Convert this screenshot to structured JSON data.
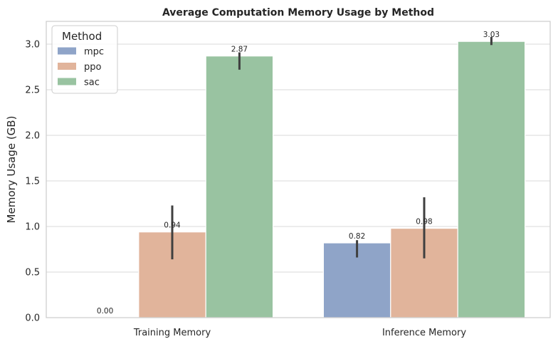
{
  "chart_data": {
    "type": "bar",
    "title": "Average Computation Memory Usage by Method",
    "xlabel": "",
    "ylabel": "Memory Usage (GB)",
    "categories": [
      "Training Memory",
      "Inference Memory"
    ],
    "ylim": [
      0,
      3.25
    ],
    "yticks": [
      0.0,
      0.5,
      1.0,
      1.5,
      2.0,
      2.5,
      3.0
    ],
    "ytick_labels": [
      "0.0",
      "0.5",
      "1.0",
      "1.5",
      "2.0",
      "2.5",
      "3.0"
    ],
    "grid": true,
    "legend": {
      "title": "Method",
      "placement": "top-left"
    },
    "series": [
      {
        "name": "mpc",
        "color": "#8fa4c8",
        "values": [
          0.0,
          0.82
        ],
        "value_labels": [
          "0.00",
          "0.82"
        ],
        "error_low": [
          null,
          0.66
        ],
        "error_high": [
          null,
          0.85
        ]
      },
      {
        "name": "ppo",
        "color": "#e1b49b",
        "values": [
          0.94,
          0.98
        ],
        "value_labels": [
          "0.94",
          "0.98"
        ],
        "error_low": [
          0.64,
          0.65
        ],
        "error_high": [
          1.23,
          1.32
        ]
      },
      {
        "name": "sac",
        "color": "#99c3a1",
        "values": [
          2.87,
          3.03
        ],
        "value_labels": [
          "2.87",
          "3.03"
        ],
        "error_low": [
          2.72,
          2.99
        ],
        "error_high": [
          2.91,
          3.08
        ]
      }
    ]
  }
}
